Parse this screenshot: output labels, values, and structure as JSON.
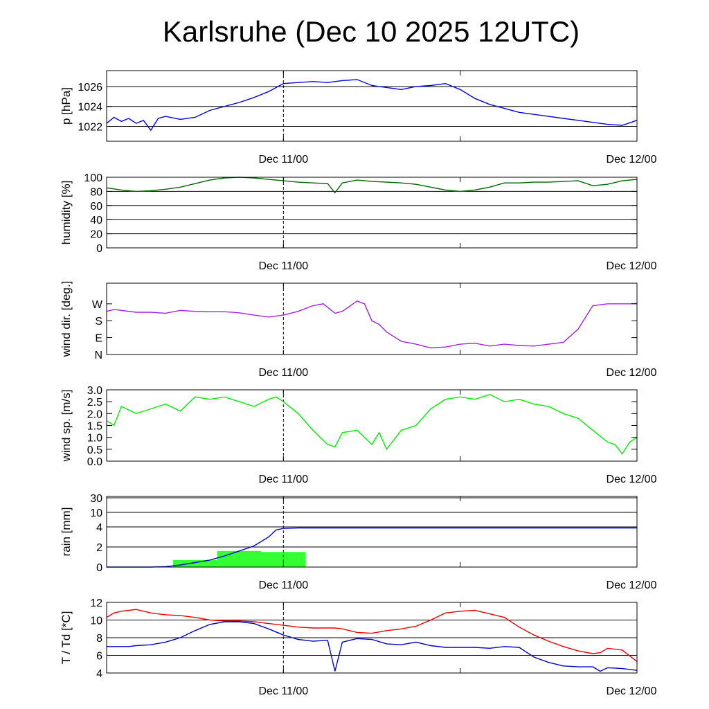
{
  "title": "Karlsruhe (Dec 10 2025 12UTC)",
  "x_tick_labels": [
    "Dec 11/00",
    "Dec 12/00"
  ],
  "chart_data": [
    {
      "type": "line",
      "ylabel": "p [hPa]",
      "ylim": [
        1020.5,
        1027.6
      ],
      "yticks": [
        1022,
        1024,
        1026
      ],
      "ytick_labels": [
        "1022",
        "1024",
        "1026"
      ],
      "grid": true,
      "x_hours": [
        0,
        0.5,
        1,
        1.5,
        2,
        2.5,
        3,
        3.5,
        4,
        5,
        6,
        7,
        8,
        9,
        10,
        11,
        12,
        13,
        14,
        15,
        16,
        17,
        18,
        19,
        20,
        21,
        22,
        23,
        24,
        25,
        26,
        27,
        28,
        29,
        30,
        31,
        32,
        33,
        34,
        35,
        36
      ],
      "series": [
        {
          "color": "#0000ee",
          "values": [
            1022.3,
            1022.9,
            1022.5,
            1022.8,
            1022.3,
            1022.6,
            1021.6,
            1022.8,
            1023.0,
            1022.7,
            1022.9,
            1023.6,
            1024.0,
            1024.4,
            1024.9,
            1025.5,
            1026.3,
            1026.4,
            1026.5,
            1026.4,
            1026.6,
            1026.7,
            1026.1,
            1025.9,
            1025.7,
            1026.0,
            1026.1,
            1026.3,
            1025.7,
            1024.8,
            1024.2,
            1023.8,
            1023.4,
            1023.2,
            1023.0,
            1022.8,
            1022.6,
            1022.4,
            1022.2,
            1022.1,
            1022.6
          ]
        }
      ]
    },
    {
      "type": "line",
      "ylabel": "humidity [%]",
      "ylim": [
        0,
        100
      ],
      "yticks": [
        0,
        20,
        40,
        60,
        80,
        100
      ],
      "ytick_labels": [
        "0",
        "20",
        "40",
        "60",
        "80",
        "100"
      ],
      "grid": true,
      "x_hours": [
        0,
        1,
        2,
        3,
        4,
        5,
        6,
        7,
        8,
        9,
        10,
        11,
        12,
        13,
        14,
        15,
        15.5,
        16,
        17,
        18,
        19,
        20,
        21,
        22,
        23,
        24,
        25,
        26,
        27,
        28,
        29,
        30,
        31,
        32,
        33,
        34,
        35,
        36
      ],
      "series": [
        {
          "color": "#006400",
          "values": [
            85,
            82,
            80,
            81,
            83,
            86,
            91,
            96,
            99,
            100,
            99,
            97,
            95,
            93,
            92,
            91,
            78,
            92,
            96,
            94,
            93,
            92,
            90,
            86,
            82,
            80,
            82,
            86,
            92,
            92,
            93,
            93,
            94,
            95,
            88,
            90,
            95,
            97
          ]
        }
      ]
    },
    {
      "type": "line",
      "ylabel": "wind dir. [deg.]",
      "ylim": [
        0,
        380
      ],
      "yticks": [
        0,
        90,
        180,
        270
      ],
      "ytick_labels": [
        "N",
        "E",
        "S",
        "W"
      ],
      "grid": false,
      "x_hours": [
        0,
        0.5,
        1,
        2,
        3,
        4,
        5,
        6,
        7,
        8,
        9,
        10,
        11,
        12,
        13,
        14,
        14.7,
        15.5,
        16,
        17,
        17.5,
        18,
        18.5,
        19,
        19.5,
        20,
        21,
        22,
        23,
        24,
        25,
        26,
        27,
        28,
        29,
        30,
        31,
        32,
        33,
        34,
        35,
        35.5,
        36
      ],
      "series": [
        {
          "color": "#a020f0",
          "values": [
            230,
            240,
            235,
            225,
            225,
            220,
            235,
            230,
            228,
            228,
            222,
            210,
            200,
            210,
            230,
            260,
            270,
            220,
            230,
            285,
            270,
            180,
            160,
            120,
            95,
            70,
            55,
            35,
            40,
            55,
            60,
            45,
            55,
            48,
            45,
            55,
            65,
            135,
            260,
            270,
            270,
            270,
            272
          ]
        }
      ]
    },
    {
      "type": "line",
      "ylabel": "wind sp. [m/s]",
      "ylim": [
        0,
        3.0
      ],
      "yticks": [
        0,
        0.5,
        1.0,
        1.5,
        2.0,
        2.5,
        3.0
      ],
      "ytick_labels": [
        "0.0",
        "0.5",
        "1.0",
        "1.5",
        "2.0",
        "2.5",
        "3.0"
      ],
      "grid": false,
      "x_hours": [
        0,
        0.5,
        1,
        2,
        3,
        4,
        5,
        6,
        7,
        8,
        9,
        10,
        11,
        11.5,
        12,
        13,
        14,
        14.5,
        15,
        15.5,
        16,
        17,
        17.5,
        18,
        18.5,
        19,
        20,
        21,
        22,
        23,
        24,
        25,
        26,
        27,
        28,
        29,
        30,
        31,
        32,
        33,
        34,
        34.5,
        35,
        35.5,
        36
      ],
      "series": [
        {
          "color": "#00ee00",
          "values": [
            1.7,
            1.5,
            2.3,
            2.0,
            2.2,
            2.4,
            2.1,
            2.7,
            2.6,
            2.7,
            2.5,
            2.3,
            2.6,
            2.7,
            2.5,
            2.0,
            1.3,
            1.0,
            0.7,
            0.6,
            1.2,
            1.3,
            1.0,
            0.7,
            1.2,
            0.5,
            1.3,
            1.5,
            2.2,
            2.6,
            2.7,
            2.6,
            2.8,
            2.5,
            2.6,
            2.4,
            2.3,
            2.0,
            1.8,
            1.3,
            0.8,
            0.7,
            0.3,
            0.8,
            1.0
          ]
        }
      ]
    },
    {
      "type": "bar+line",
      "ylabel": "rain [mm]",
      "yticks": [
        0,
        2,
        4,
        10,
        30
      ],
      "ytick_labels": [
        "0",
        "2",
        "4",
        "10",
        "30"
      ],
      "scale_note": "non-linear",
      "grid": true,
      "bars": {
        "color": "#33ff33",
        "segments": [
          {
            "x0": 4.5,
            "x1": 7.5,
            "value": 0.7
          },
          {
            "x0": 7.5,
            "x1": 10.5,
            "value": 1.6
          },
          {
            "x0": 10.5,
            "x1": 13.5,
            "value": 1.5
          }
        ]
      },
      "x_hours": [
        0,
        2,
        3,
        4,
        5,
        6,
        7,
        8,
        9,
        10,
        11,
        11.5,
        12,
        13,
        14,
        20,
        24,
        30,
        36
      ],
      "series": [
        {
          "color": "#0000cc",
          "values": [
            0,
            0,
            0,
            0.05,
            0.2,
            0.45,
            0.7,
            1.1,
            1.6,
            2.1,
            3.0,
            3.7,
            3.85,
            3.9,
            3.9,
            3.9,
            3.9,
            3.9,
            3.9
          ]
        }
      ]
    },
    {
      "type": "line",
      "ylabel": "T / Td [*C]",
      "ylim": [
        4,
        12
      ],
      "yticks": [
        4,
        6,
        8,
        10,
        12
      ],
      "ytick_labels": [
        "4",
        "6",
        "8",
        "10",
        "12"
      ],
      "grid": true,
      "x_hours": [
        0,
        0.5,
        1,
        1.5,
        2,
        3,
        4,
        5,
        6,
        7,
        8,
        9,
        10,
        11,
        12,
        13,
        14,
        15,
        15.5,
        16,
        17,
        18,
        19,
        20,
        21,
        22,
        23,
        24,
        25,
        26,
        27,
        28,
        29,
        30,
        31,
        32,
        33,
        33.5,
        34,
        35,
        36
      ],
      "series": [
        {
          "color": "#ee0000",
          "values": [
            10.3,
            10.8,
            11.0,
            11.1,
            11.2,
            10.8,
            10.6,
            10.5,
            10.3,
            10.0,
            9.9,
            9.9,
            9.8,
            9.6,
            9.4,
            9.2,
            9.1,
            9.1,
            9.1,
            9.0,
            8.6,
            8.5,
            8.8,
            9.0,
            9.3,
            10.0,
            10.8,
            11.0,
            11.1,
            10.7,
            10.3,
            9.2,
            8.3,
            7.6,
            7.0,
            6.5,
            6.2,
            6.3,
            6.8,
            6.6,
            5.3
          ]
        },
        {
          "color": "#0000cc",
          "values": [
            7.0,
            7.0,
            7.0,
            7.0,
            7.1,
            7.2,
            7.5,
            8.0,
            8.8,
            9.5,
            9.8,
            9.8,
            9.6,
            9.0,
            8.3,
            7.8,
            7.6,
            7.7,
            4.2,
            7.5,
            7.9,
            7.8,
            7.3,
            7.2,
            7.5,
            7.1,
            6.9,
            6.9,
            6.9,
            6.8,
            7.0,
            6.9,
            5.8,
            5.2,
            4.8,
            4.7,
            4.7,
            4.2,
            4.6,
            4.5,
            4.3
          ]
        }
      ]
    }
  ]
}
